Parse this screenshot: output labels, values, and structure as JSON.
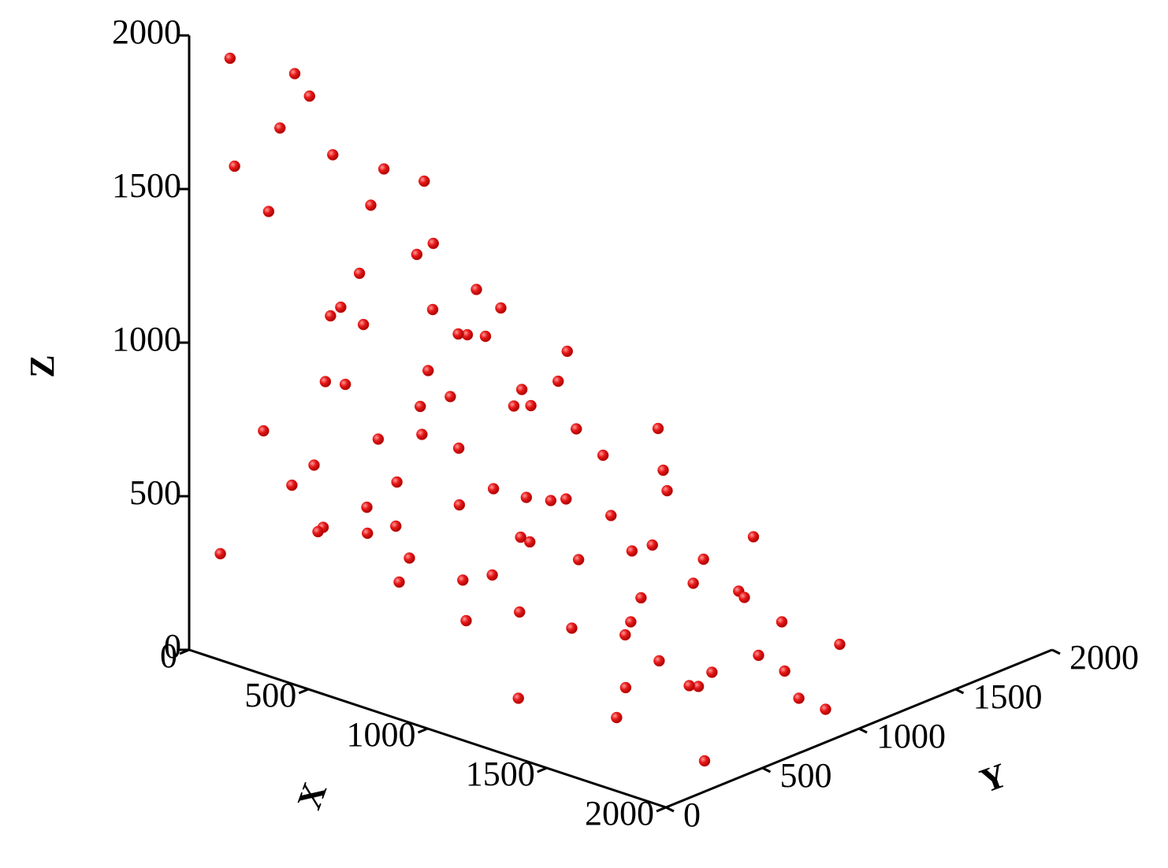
{
  "chart_data": {
    "type": "scatter3d",
    "color": "#e01414",
    "x_label": "X",
    "y_label": "Y",
    "z_label": "Z",
    "xlim": [
      0,
      2000
    ],
    "ylim": [
      0,
      2000
    ],
    "zlim": [
      0,
      2000
    ],
    "xticks": [
      0,
      500,
      1000,
      1500,
      2000
    ],
    "yticks": [
      0,
      500,
      1000,
      1500,
      2000
    ],
    "zticks": [
      0,
      500,
      1000,
      1500,
      2000
    ],
    "x": [
      50,
      200,
      100,
      300,
      400,
      150,
      600,
      500,
      250,
      700,
      50,
      900,
      800,
      1000,
      350,
      1100,
      1200,
      600,
      150,
      1300,
      1400,
      1500,
      900,
      450,
      1600,
      1700,
      1800,
      1900,
      2000,
      2000,
      1950,
      1850,
      1750,
      1650,
      1550,
      1450,
      1300,
      1200,
      1100,
      1000,
      900,
      800,
      700,
      600,
      500,
      400,
      300,
      200,
      100,
      50,
      150,
      250,
      350,
      450,
      550,
      650,
      750,
      850,
      950,
      1050,
      1150,
      1250,
      1350,
      1450,
      1550,
      1650,
      1750,
      1850,
      1950,
      2000,
      1900,
      1600,
      1300,
      1000,
      700,
      400,
      200,
      800,
      1050,
      1250,
      550,
      350,
      650,
      1150,
      950,
      750,
      500,
      300,
      1350,
      1700
    ],
    "y": [
      150,
      300,
      500,
      100,
      250,
      50,
      200,
      600,
      700,
      400,
      350,
      150,
      500,
      300,
      450,
      600,
      200,
      700,
      600,
      400,
      700,
      100,
      800,
      150,
      500,
      300,
      700,
      500,
      600,
      900,
      300,
      800,
      100,
      600,
      300,
      800,
      100,
      500,
      900,
      200,
      600,
      100,
      900,
      400,
      800,
      200,
      700,
      400,
      800,
      100,
      200,
      500,
      100,
      650,
      300,
      550,
      150,
      350,
      700,
      450,
      150,
      750,
      350,
      550,
      750,
      250,
      450,
      150,
      750,
      200,
      950,
      900,
      850,
      950,
      750,
      900,
      950,
      250,
      100,
      600,
      500,
      300,
      100,
      350,
      550,
      650,
      50,
      550,
      50,
      850
    ],
    "z": [
      1900,
      1850,
      1700,
      1750,
      1650,
      1600,
      1550,
      1500,
      1450,
      1400,
      1350,
      1300,
      1250,
      1200,
      1200,
      1100,
      1050,
      1000,
      1000,
      950,
      900,
      850,
      900,
      950,
      800,
      700,
      650,
      550,
      450,
      300,
      350,
      200,
      300,
      150,
      100,
      50,
      150,
      250,
      100,
      300,
      200,
      400,
      300,
      350,
      150,
      450,
      300,
      550,
      200,
      300,
      700,
      800,
      600,
      650,
      750,
      850,
      700,
      600,
      550,
      650,
      500,
      450,
      550,
      400,
      500,
      450,
      550,
      400,
      150,
      100,
      50,
      350,
      700,
      450,
      1100,
      900,
      600,
      1050,
      900,
      800,
      1300,
      1100,
      1200,
      1000,
      950,
      550,
      500,
      400,
      700,
      200
    ]
  }
}
